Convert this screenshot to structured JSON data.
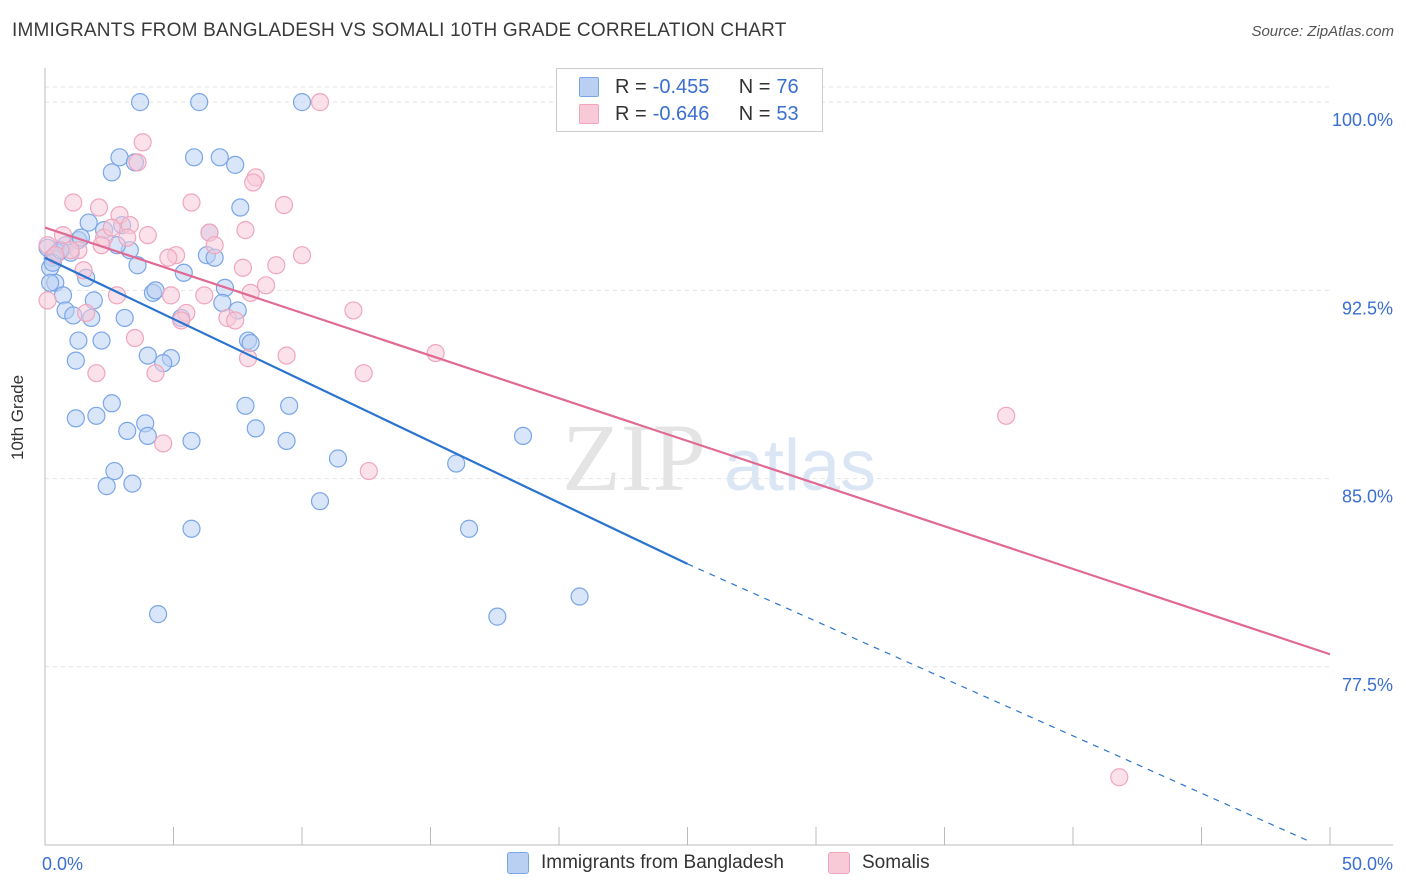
{
  "title": "IMMIGRANTS FROM BANGLADESH VS SOMALI 10TH GRADE CORRELATION CHART",
  "source": "Source: ZipAtlas.com",
  "watermark_main": "ZIP",
  "watermark_sub": "atlas",
  "chart_data": {
    "type": "scatter",
    "xlabel": "",
    "ylabel": "10th Grade",
    "xlim": [
      0,
      50
    ],
    "ylim": [
      70.4,
      101.2
    ],
    "x_tick_labels": [
      "0.0%",
      "50.0%"
    ],
    "y_ticks": [
      77.5,
      85.0,
      92.5,
      100.0
    ],
    "y_tick_labels": [
      "77.5%",
      "85.0%",
      "92.5%",
      "100.0%"
    ],
    "grid": true,
    "legend_position": "top-center",
    "series": [
      {
        "name": "Immigrants from Bangladesh",
        "color": "#7aa6e8",
        "fill": "#b9d0f3",
        "line_color": "#2a74d0",
        "R": "-0.455",
        "N": "76",
        "points": [
          [
            3.7,
            100
          ],
          [
            6.0,
            100
          ],
          [
            10.0,
            100
          ],
          [
            2.9,
            97.8
          ],
          [
            5.8,
            97.8
          ],
          [
            6.8,
            97.8
          ],
          [
            2.6,
            97.2
          ],
          [
            3.5,
            97.6
          ],
          [
            7.4,
            97.5
          ],
          [
            0.1,
            94.2
          ],
          [
            0.3,
            93.8
          ],
          [
            0.5,
            94.0
          ],
          [
            0.8,
            94.3
          ],
          [
            1.0,
            94.0
          ],
          [
            1.3,
            94.5
          ],
          [
            1.7,
            95.2
          ],
          [
            2.3,
            94.9
          ],
          [
            3.0,
            95.1
          ],
          [
            3.3,
            94.1
          ],
          [
            7.6,
            95.8
          ],
          [
            6.4,
            94.8
          ],
          [
            6.3,
            93.9
          ],
          [
            6.6,
            93.8
          ],
          [
            0.2,
            93.4
          ],
          [
            0.4,
            92.8
          ],
          [
            0.7,
            92.3
          ],
          [
            1.6,
            93.0
          ],
          [
            3.6,
            93.5
          ],
          [
            4.2,
            92.4
          ],
          [
            7.0,
            92.6
          ],
          [
            7.5,
            91.7
          ],
          [
            0.8,
            91.7
          ],
          [
            1.1,
            91.5
          ],
          [
            1.8,
            91.4
          ],
          [
            3.1,
            91.4
          ],
          [
            5.3,
            91.4
          ],
          [
            1.3,
            90.5
          ],
          [
            2.2,
            90.5
          ],
          [
            7.9,
            90.5
          ],
          [
            8.0,
            90.4
          ],
          [
            4.0,
            89.9
          ],
          [
            4.9,
            89.8
          ],
          [
            1.2,
            89.7
          ],
          [
            4.6,
            89.6
          ],
          [
            2.6,
            88.0
          ],
          [
            7.8,
            87.9
          ],
          [
            9.5,
            87.9
          ],
          [
            1.2,
            87.4
          ],
          [
            2.0,
            87.5
          ],
          [
            3.9,
            87.2
          ],
          [
            3.2,
            86.9
          ],
          [
            4.0,
            86.7
          ],
          [
            8.2,
            87.0
          ],
          [
            5.7,
            86.5
          ],
          [
            9.4,
            86.5
          ],
          [
            11.4,
            85.8
          ],
          [
            16.0,
            85.6
          ],
          [
            18.6,
            86.7
          ],
          [
            2.7,
            85.3
          ],
          [
            2.4,
            84.7
          ],
          [
            3.4,
            84.8
          ],
          [
            10.7,
            84.1
          ],
          [
            5.7,
            83.0
          ],
          [
            16.5,
            83.0
          ],
          [
            20.8,
            80.3
          ],
          [
            4.4,
            79.6
          ],
          [
            17.6,
            79.5
          ],
          [
            0.2,
            92.8
          ],
          [
            0.3,
            93.6
          ],
          [
            1.9,
            92.1
          ],
          [
            4.3,
            92.5
          ],
          [
            2.8,
            94.3
          ],
          [
            5.4,
            93.2
          ],
          [
            6.9,
            92.0
          ],
          [
            0.6,
            94.1
          ],
          [
            1.4,
            94.6
          ]
        ],
        "trend": {
          "x0": 0,
          "y0": 93.8,
          "x1": 25,
          "y1": 81.6,
          "dash_x1": 49.3,
          "dash_y1": 70.5
        }
      },
      {
        "name": "Somalis",
        "color": "#f0a6bd",
        "fill": "#f8c9d7",
        "line_color": "#e06a93",
        "R": "-0.646",
        "N": "53",
        "points": [
          [
            10.7,
            100
          ],
          [
            3.8,
            98.4
          ],
          [
            3.6,
            97.6
          ],
          [
            8.2,
            97.0
          ],
          [
            8.1,
            96.8
          ],
          [
            5.7,
            96.0
          ],
          [
            9.3,
            95.9
          ],
          [
            1.1,
            96.0
          ],
          [
            2.1,
            95.8
          ],
          [
            2.9,
            95.5
          ],
          [
            3.3,
            95.1
          ],
          [
            7.8,
            94.9
          ],
          [
            6.4,
            94.8
          ],
          [
            2.3,
            94.6
          ],
          [
            4.0,
            94.7
          ],
          [
            0.7,
            94.7
          ],
          [
            0.1,
            94.3
          ],
          [
            1.3,
            94.1
          ],
          [
            2.6,
            95.0
          ],
          [
            5.1,
            93.9
          ],
          [
            4.8,
            93.8
          ],
          [
            10.0,
            93.9
          ],
          [
            7.7,
            93.4
          ],
          [
            9.0,
            93.5
          ],
          [
            1.5,
            93.3
          ],
          [
            8.6,
            92.7
          ],
          [
            4.9,
            92.3
          ],
          [
            6.2,
            92.3
          ],
          [
            8.0,
            92.4
          ],
          [
            2.8,
            92.3
          ],
          [
            0.1,
            92.1
          ],
          [
            12.0,
            91.7
          ],
          [
            1.6,
            91.6
          ],
          [
            5.5,
            91.6
          ],
          [
            7.1,
            91.4
          ],
          [
            7.4,
            91.3
          ],
          [
            5.3,
            91.3
          ],
          [
            3.5,
            90.6
          ],
          [
            9.4,
            89.9
          ],
          [
            15.2,
            90.0
          ],
          [
            7.9,
            89.8
          ],
          [
            2.0,
            89.2
          ],
          [
            4.3,
            89.2
          ],
          [
            12.4,
            89.2
          ],
          [
            37.4,
            87.5
          ],
          [
            4.6,
            86.4
          ],
          [
            12.6,
            85.3
          ],
          [
            41.8,
            73.1
          ],
          [
            1.0,
            94.1
          ],
          [
            3.2,
            94.6
          ],
          [
            2.2,
            94.3
          ],
          [
            6.6,
            94.3
          ],
          [
            0.4,
            93.9
          ]
        ],
        "trend": {
          "x0": 0,
          "y0": 95.0,
          "x1": 50,
          "y1": 78.0
        }
      }
    ]
  }
}
